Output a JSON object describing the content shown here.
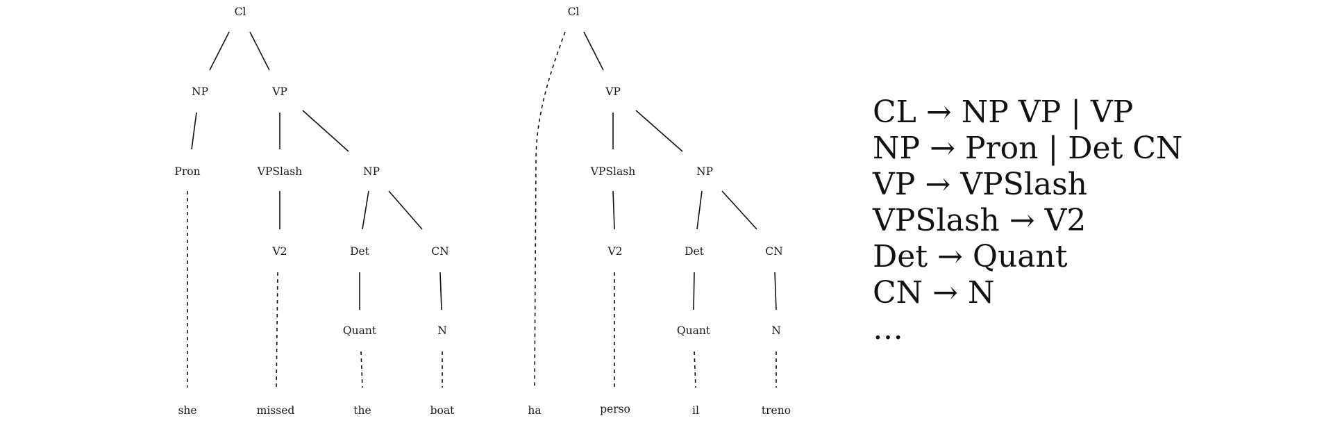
{
  "tree_left": {
    "nodes": {
      "cl": "Cl",
      "np": "NP",
      "vp": "VP",
      "pron": "Pron",
      "vpslash": "VPSlash",
      "np2": "NP",
      "v2": "V2",
      "det": "Det",
      "cn": "CN",
      "quant": "Quant",
      "n": "N",
      "w1": "she",
      "w2": "missed",
      "w3": "the",
      "w4": "boat"
    }
  },
  "tree_right": {
    "nodes": {
      "cl": "Cl",
      "vp": "VP",
      "vpslash": "VPSlash",
      "np2": "NP",
      "v2": "V2",
      "det": "Det",
      "cn": "CN",
      "quant": "Quant",
      "n": "N",
      "w1": "ha",
      "w2": "perso",
      "w3": "il",
      "w4": "treno"
    }
  },
  "grammar": {
    "arrow": "→",
    "rules": [
      {
        "lhs": "CL",
        "rhs": "NP VP | VP"
      },
      {
        "lhs": "NP",
        "rhs": "Pron | Det CN"
      },
      {
        "lhs": "VP",
        "rhs": "VPSlash"
      },
      {
        "lhs": "VPSlash",
        "rhs": "V2"
      },
      {
        "lhs": "Det",
        "rhs": "Quant"
      },
      {
        "lhs": "CN",
        "rhs": "N"
      }
    ],
    "ellipsis": "…"
  }
}
